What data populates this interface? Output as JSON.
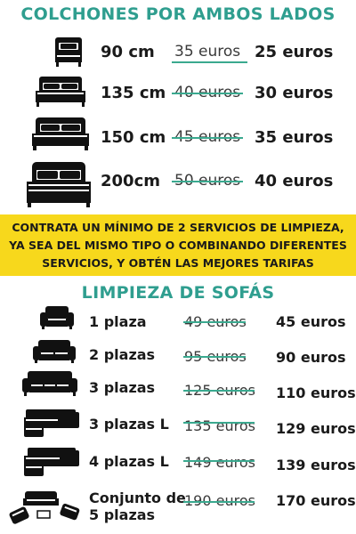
{
  "mattress_section": {
    "title": "COLCHONES POR AMBOS LADOS",
    "items": [
      {
        "size": "90  cm",
        "old_price": "35 euros",
        "new_price": "25 euros",
        "icon": "single-bed-icon"
      },
      {
        "size": "135 cm",
        "old_price": "40 euros",
        "new_price": "30 euros",
        "icon": "double-bed-icon"
      },
      {
        "size": "150 cm",
        "old_price": "45 euros",
        "new_price": "35 euros",
        "icon": "queen-bed-icon"
      },
      {
        "size": "200cm",
        "old_price": "50 euros",
        "new_price": "40 euros",
        "icon": "king-bed-icon"
      }
    ]
  },
  "banner": {
    "line1": "CONTRATA UN MÍNIMO DE 2 SERVICIOS DE LIMPIEZA,",
    "line2": "YA SEA DEL MISMO TIPO O COMBINANDO DIFERENTES",
    "line3": "SERVICIOS, Y OBTÉN LAS MEJORES TARIFAS",
    "background": "#f7d81c"
  },
  "sofa_section": {
    "title": "LIMPIEZA DE SOFÁS",
    "items": [
      {
        "name": "1 plaza",
        "old_price": "49 euros",
        "new_price": "45 euros",
        "icon": "armchair-icon"
      },
      {
        "name": "2 plazas",
        "old_price": "95 euros",
        "new_price": "90 euros",
        "icon": "loveseat-icon"
      },
      {
        "name": "3 plazas",
        "old_price": "125 euros",
        "new_price": "110 euros",
        "icon": "sofa-icon"
      },
      {
        "name": "3 plazas L",
        "old_price": "135 euros",
        "new_price": "129 euros",
        "icon": "l-sofa-icon"
      },
      {
        "name": "4 plazas L",
        "old_price": "149 euros",
        "new_price": "139 euros",
        "icon": "l-sofa-large-icon"
      },
      {
        "name_line1": "Conjunto de",
        "name_line2": "5 plazas",
        "old_price": "190 euros",
        "new_price": "170 euros",
        "icon": "sofa-set-icon"
      }
    ]
  },
  "colors": {
    "accent": "#2f9e8f",
    "strike": "#3aa98f",
    "text": "#1a1a1a",
    "banner": "#f7d81c"
  }
}
